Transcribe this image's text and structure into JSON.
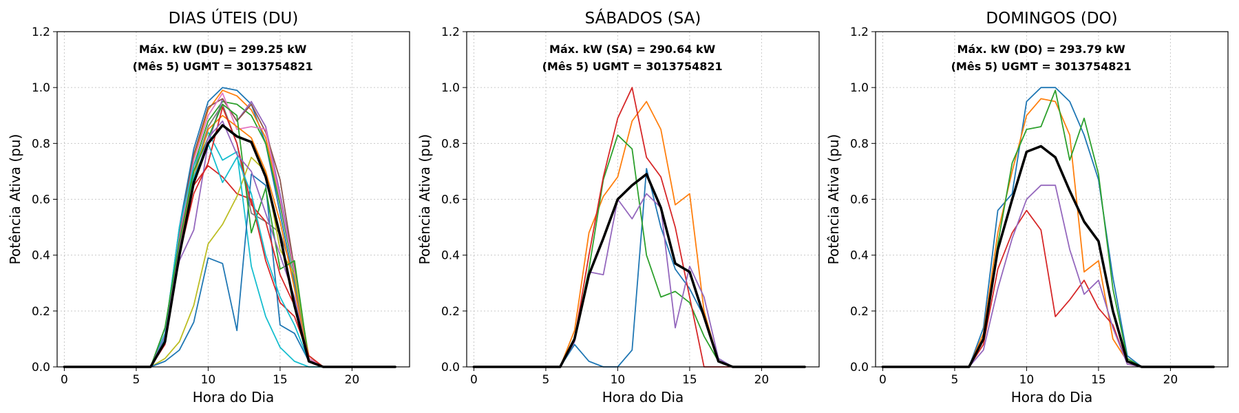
{
  "chart_data": [
    {
      "type": "line",
      "title": "DIAS ÚTEIS (DU)",
      "xlabel": "Hora do Dia",
      "ylabel": "Potência Ativa (pu)",
      "xlim": [
        -0.5,
        24
      ],
      "ylim": [
        0,
        1.2
      ],
      "xticks": [
        "0",
        "5",
        "10",
        "15",
        "20"
      ],
      "yticks": [
        "0.0",
        "0.2",
        "0.4",
        "0.6",
        "0.8",
        "1.0",
        "1.2"
      ],
      "grid": true,
      "annotation": [
        "Máx. kW (DU) = 299.25 kW",
        "(Mês 5)  UGMT = 3013754821"
      ],
      "x": [
        0,
        1,
        2,
        3,
        4,
        5,
        6,
        7,
        8,
        9,
        10,
        11,
        12,
        13,
        14,
        15,
        16,
        17,
        18,
        19,
        20,
        21,
        22,
        23
      ],
      "series": [
        {
          "color": "#1f77b4",
          "values": [
            0,
            0,
            0,
            0,
            0,
            0,
            0,
            0.12,
            0.5,
            0.78,
            0.95,
            1.0,
            0.99,
            0.94,
            0.8,
            0.55,
            0.3,
            0.03,
            0,
            0,
            0,
            0,
            0,
            0
          ]
        },
        {
          "color": "#ff7f0e",
          "values": [
            0,
            0,
            0,
            0,
            0,
            0,
            0,
            0.12,
            0.47,
            0.75,
            0.92,
            0.99,
            0.97,
            0.92,
            0.82,
            0.6,
            0.35,
            0.03,
            0,
            0,
            0,
            0,
            0,
            0
          ]
        },
        {
          "color": "#2ca02c",
          "values": [
            0,
            0,
            0,
            0,
            0,
            0,
            0,
            0.1,
            0.45,
            0.72,
            0.88,
            0.95,
            0.94,
            0.9,
            0.8,
            0.58,
            0.33,
            0.03,
            0,
            0,
            0,
            0,
            0,
            0
          ]
        },
        {
          "color": "#d62728",
          "values": [
            0,
            0,
            0,
            0,
            0,
            0,
            0,
            0.08,
            0.4,
            0.65,
            0.72,
            0.68,
            0.62,
            0.6,
            0.38,
            0.23,
            0.18,
            0.04,
            0,
            0,
            0,
            0,
            0,
            0
          ]
        },
        {
          "color": "#9467bd",
          "values": [
            0,
            0,
            0,
            0,
            0,
            0,
            0,
            0.14,
            0.38,
            0.49,
            0.8,
            0.96,
            0.88,
            0.95,
            0.86,
            0.62,
            0.35,
            0.02,
            0,
            0,
            0,
            0,
            0,
            0
          ]
        },
        {
          "color": "#8c564b",
          "values": [
            0,
            0,
            0,
            0,
            0,
            0,
            0,
            0.11,
            0.48,
            0.76,
            0.93,
            0.96,
            0.88,
            0.94,
            0.84,
            0.67,
            0.35,
            0.03,
            0,
            0,
            0,
            0,
            0,
            0
          ]
        },
        {
          "color": "#e377c2",
          "values": [
            0,
            0,
            0,
            0,
            0,
            0,
            0,
            0.12,
            0.46,
            0.74,
            0.9,
            0.98,
            0.85,
            0.86,
            0.85,
            0.6,
            0.34,
            0.03,
            0,
            0,
            0,
            0,
            0,
            0
          ]
        },
        {
          "color": "#7f7f7f",
          "values": [
            0,
            0,
            0,
            0,
            0,
            0,
            0,
            0.1,
            0.44,
            0.7,
            0.86,
            0.94,
            0.8,
            0.55,
            0.52,
            0.48,
            0.32,
            0.02,
            0,
            0,
            0,
            0,
            0,
            0
          ]
        },
        {
          "color": "#bcbd22",
          "values": [
            0,
            0,
            0,
            0,
            0,
            0,
            0,
            0.03,
            0.09,
            0.22,
            0.44,
            0.51,
            0.61,
            0.75,
            0.7,
            0.42,
            0.33,
            0.04,
            0,
            0,
            0,
            0,
            0,
            0
          ]
        },
        {
          "color": "#17becf",
          "values": [
            0,
            0,
            0,
            0,
            0,
            0,
            0,
            0.12,
            0.5,
            0.72,
            0.84,
            0.74,
            0.77,
            0.36,
            0.18,
            0.07,
            0.02,
            0,
            0,
            0,
            0,
            0,
            0,
            0
          ]
        },
        {
          "color": "#1f77b4",
          "values": [
            0,
            0,
            0,
            0,
            0,
            0,
            0,
            0.02,
            0.06,
            0.16,
            0.39,
            0.37,
            0.13,
            0.69,
            0.65,
            0.15,
            0.12,
            0.02,
            0,
            0,
            0,
            0,
            0,
            0
          ]
        },
        {
          "color": "#ff7f0e",
          "values": [
            0,
            0,
            0,
            0,
            0,
            0,
            0,
            0.1,
            0.42,
            0.68,
            0.85,
            0.9,
            0.86,
            0.82,
            0.7,
            0.52,
            0.28,
            0.02,
            0,
            0,
            0,
            0,
            0,
            0
          ]
        },
        {
          "color": "#2ca02c",
          "values": [
            0,
            0,
            0,
            0,
            0,
            0,
            0,
            0.14,
            0.45,
            0.7,
            0.82,
            0.94,
            0.9,
            0.48,
            0.64,
            0.35,
            0.38,
            0.02,
            0,
            0,
            0,
            0,
            0,
            0
          ]
        },
        {
          "color": "#d62728",
          "values": [
            0,
            0,
            0,
            0,
            0,
            0,
            0,
            0.1,
            0.4,
            0.62,
            0.73,
            0.93,
            0.8,
            0.58,
            0.52,
            0.33,
            0.22,
            0.04,
            0,
            0,
            0,
            0,
            0,
            0
          ]
        },
        {
          "color": "#9467bd",
          "values": [
            0,
            0,
            0,
            0,
            0,
            0,
            0,
            0.11,
            0.42,
            0.66,
            0.82,
            0.88,
            0.76,
            0.7,
            0.55,
            0.4,
            0.25,
            0.02,
            0,
            0,
            0,
            0,
            0,
            0
          ]
        },
        {
          "color": "#17becf",
          "values": [
            0,
            0,
            0,
            0,
            0,
            0,
            0,
            0.1,
            0.4,
            0.68,
            0.8,
            0.66,
            0.75,
            0.62,
            0.4,
            0.25,
            0.15,
            0.02,
            0,
            0,
            0,
            0,
            0,
            0
          ]
        },
        {
          "color": "#000000",
          "bold": true,
          "values": [
            0,
            0,
            0,
            0,
            0,
            0,
            0,
            0.09,
            0.4,
            0.66,
            0.8,
            0.865,
            0.825,
            0.805,
            0.68,
            0.47,
            0.22,
            0.02,
            0,
            0,
            0,
            0,
            0,
            0
          ]
        }
      ]
    },
    {
      "type": "line",
      "title": "SÁBADOS (SA)",
      "xlabel": "Hora do Dia",
      "ylabel": "Potência Ativa (pu)",
      "xlim": [
        -0.5,
        24
      ],
      "ylim": [
        0,
        1.2
      ],
      "xticks": [
        "0",
        "5",
        "10",
        "15",
        "20"
      ],
      "yticks": [
        "0.0",
        "0.2",
        "0.4",
        "0.6",
        "0.8",
        "1.0",
        "1.2"
      ],
      "grid": true,
      "annotation": [
        "Máx. kW (SA) = 290.64 kW",
        "(Mês 5)  UGMT = 3013754821"
      ],
      "x": [
        0,
        1,
        2,
        3,
        4,
        5,
        6,
        7,
        8,
        9,
        10,
        11,
        12,
        13,
        14,
        15,
        16,
        17,
        18,
        19,
        20,
        21,
        22,
        23
      ],
      "series": [
        {
          "color": "#1f77b4",
          "values": [
            0,
            0,
            0,
            0,
            0,
            0,
            0,
            0.08,
            0.02,
            0,
            0,
            0.06,
            0.71,
            0.5,
            0.35,
            0.28,
            0.18,
            0.03,
            0,
            0,
            0,
            0,
            0,
            0
          ]
        },
        {
          "color": "#ff7f0e",
          "values": [
            0,
            0,
            0,
            0,
            0,
            0,
            0,
            0.13,
            0.48,
            0.61,
            0.68,
            0.88,
            0.95,
            0.85,
            0.58,
            0.62,
            0.2,
            0.02,
            0,
            0,
            0,
            0,
            0,
            0
          ]
        },
        {
          "color": "#2ca02c",
          "values": [
            0,
            0,
            0,
            0,
            0,
            0,
            0,
            0.1,
            0.35,
            0.67,
            0.83,
            0.78,
            0.4,
            0.25,
            0.27,
            0.23,
            0.11,
            0.02,
            0,
            0,
            0,
            0,
            0,
            0
          ]
        },
        {
          "color": "#d62728",
          "values": [
            0,
            0,
            0,
            0,
            0,
            0,
            0,
            0.1,
            0.4,
            0.68,
            0.89,
            1.0,
            0.75,
            0.68,
            0.5,
            0.25,
            0,
            0,
            0,
            0,
            0,
            0,
            0,
            0
          ]
        },
        {
          "color": "#9467bd",
          "values": [
            0,
            0,
            0,
            0,
            0,
            0,
            0,
            0.09,
            0.34,
            0.33,
            0.6,
            0.53,
            0.62,
            0.57,
            0.14,
            0.36,
            0.25,
            0.03,
            0,
            0,
            0,
            0,
            0,
            0
          ]
        },
        {
          "color": "#000000",
          "bold": true,
          "values": [
            0,
            0,
            0,
            0,
            0,
            0,
            0,
            0.1,
            0.33,
            0.46,
            0.6,
            0.65,
            0.69,
            0.57,
            0.37,
            0.34,
            0.18,
            0.02,
            0,
            0,
            0,
            0,
            0,
            0
          ]
        }
      ]
    },
    {
      "type": "line",
      "title": "DOMINGOS (DO)",
      "xlabel": "Hora do Dia",
      "ylabel": "Potência Ativa (pu)",
      "xlim": [
        -0.5,
        24
      ],
      "ylim": [
        0,
        1.2
      ],
      "xticks": [
        "0",
        "5",
        "10",
        "15",
        "20"
      ],
      "yticks": [
        "0.0",
        "0.2",
        "0.4",
        "0.6",
        "0.8",
        "1.0",
        "1.2"
      ],
      "grid": true,
      "annotation": [
        "Máx. kW (DO) = 293.79 kW",
        "(Mês 5)  UGMT = 3013754821"
      ],
      "x": [
        0,
        1,
        2,
        3,
        4,
        5,
        6,
        7,
        8,
        9,
        10,
        11,
        12,
        13,
        14,
        15,
        16,
        17,
        18,
        19,
        20,
        21,
        22,
        23
      ],
      "series": [
        {
          "color": "#1f77b4",
          "values": [
            0,
            0,
            0,
            0,
            0,
            0,
            0,
            0.14,
            0.56,
            0.62,
            0.95,
            1.0,
            1.0,
            0.95,
            0.83,
            0.67,
            0.32,
            0.04,
            0,
            0,
            0,
            0,
            0,
            0
          ]
        },
        {
          "color": "#ff7f0e",
          "values": [
            0,
            0,
            0,
            0,
            0,
            0,
            0,
            0.12,
            0.48,
            0.7,
            0.9,
            0.96,
            0.95,
            0.83,
            0.34,
            0.38,
            0.1,
            0.02,
            0,
            0,
            0,
            0,
            0,
            0
          ]
        },
        {
          "color": "#2ca02c",
          "values": [
            0,
            0,
            0,
            0,
            0,
            0,
            0,
            0.1,
            0.44,
            0.73,
            0.85,
            0.86,
            0.99,
            0.74,
            0.89,
            0.69,
            0.28,
            0.03,
            0,
            0,
            0,
            0,
            0,
            0
          ]
        },
        {
          "color": "#d62728",
          "values": [
            0,
            0,
            0,
            0,
            0,
            0,
            0,
            0.08,
            0.35,
            0.48,
            0.56,
            0.49,
            0.18,
            0.24,
            0.31,
            0.21,
            0.15,
            0.01,
            0,
            0,
            0,
            0,
            0,
            0
          ]
        },
        {
          "color": "#9467bd",
          "values": [
            0,
            0,
            0,
            0,
            0,
            0,
            0,
            0.06,
            0.28,
            0.46,
            0.6,
            0.65,
            0.65,
            0.42,
            0.26,
            0.31,
            0.14,
            0.01,
            0,
            0,
            0,
            0,
            0,
            0
          ]
        },
        {
          "color": "#000000",
          "bold": true,
          "values": [
            0,
            0,
            0,
            0,
            0,
            0,
            0,
            0.1,
            0.42,
            0.6,
            0.77,
            0.79,
            0.75,
            0.63,
            0.52,
            0.45,
            0.2,
            0.02,
            0,
            0,
            0,
            0,
            0,
            0
          ]
        }
      ]
    }
  ]
}
